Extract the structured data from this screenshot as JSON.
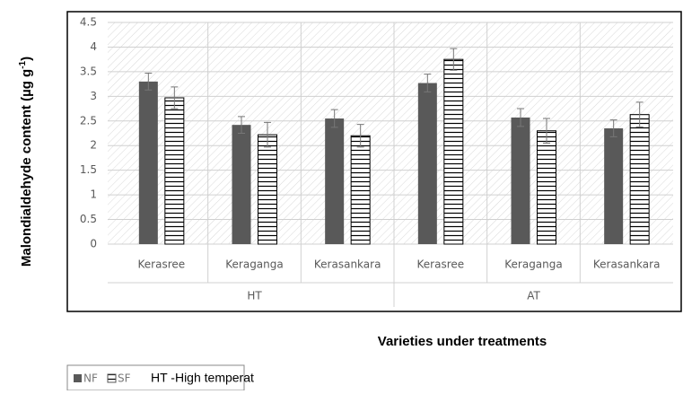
{
  "chart_data": {
    "type": "bar",
    "y_label": "Malondialdehyde content (µg g",
    "y_label_sup": "-1",
    "y_label_end": ")",
    "x_label": "Varieties under treatments",
    "categories": [
      "Kerasree",
      "Keraganga",
      "Kerasankara",
      "Kerasree",
      "Keraganga",
      "Kerasankara"
    ],
    "groups": [
      "HT",
      "AT"
    ],
    "series": [
      {
        "name": "NF",
        "color": "#595959",
        "values": [
          3.3,
          2.42,
          2.55,
          3.27,
          2.57,
          2.35
        ],
        "errors": [
          0.17,
          0.17,
          0.18,
          0.18,
          0.18,
          0.17
        ]
      },
      {
        "name": "SF",
        "color": "#ffffff",
        "values": [
          2.97,
          2.22,
          2.2,
          3.75,
          2.3,
          2.63
        ],
        "errors": [
          0.22,
          0.25,
          0.23,
          0.22,
          0.25,
          0.25
        ]
      }
    ],
    "ylim": [
      0,
      4.5
    ],
    "yticks": [
      0,
      0.5,
      1,
      1.5,
      2,
      2.5,
      3,
      3.5,
      4,
      4.5
    ],
    "grid": true,
    "legend_note": "HT -High temperat"
  }
}
